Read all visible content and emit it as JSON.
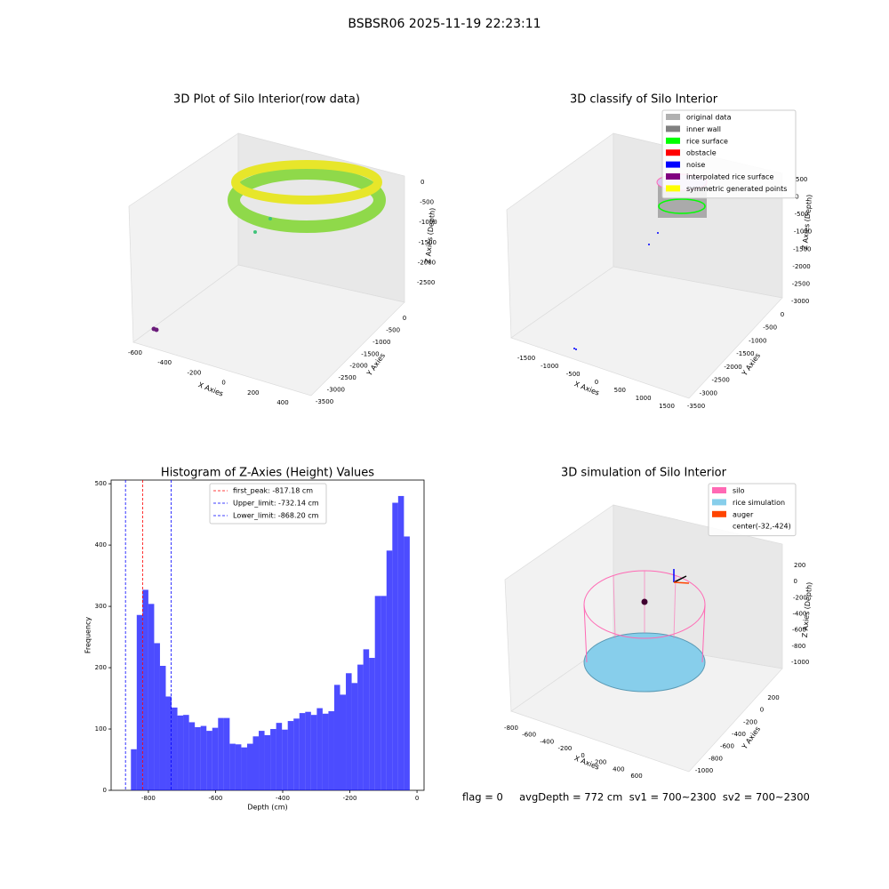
{
  "title": "BSBSR06 2025-11-19 22:23:11",
  "chart_data": [
    {
      "type": "scatter3d",
      "title": "3D Plot of Silo Interior(row data)",
      "x_label": "X Axies",
      "y_label": "Y Axies",
      "z_label": "Z Axies (Depth)",
      "xticks": [
        -600,
        -400,
        -200,
        0,
        200,
        400
      ],
      "yticks": [
        0,
        -500,
        -1000,
        -1500,
        -2000,
        -2500,
        -3000,
        -3500
      ],
      "zticks": [
        0,
        -500,
        -1000,
        -1500,
        -2000,
        -2500
      ]
    },
    {
      "type": "scatter3d",
      "title": "3D classify of Silo Interior",
      "x_label": "X Axies",
      "y_label": "Y Axies",
      "z_label": "Z Axies (Depth)",
      "xticks": [
        -1500,
        -1000,
        -500,
        0,
        500,
        1000,
        1500
      ],
      "yticks": [
        0,
        -500,
        -1000,
        -1500,
        -2000,
        -2500,
        -3000,
        -3500
      ],
      "zticks": [
        500,
        0,
        -500,
        -1000,
        -1500,
        -2000,
        -2500,
        -3000
      ],
      "legend": [
        {
          "name": "original data",
          "color": "#b0b0b0"
        },
        {
          "name": "inner wall",
          "color": "#808080"
        },
        {
          "name": "rice surface",
          "color": "#00ff00"
        },
        {
          "name": "obstacle",
          "color": "#ff0000"
        },
        {
          "name": "noise",
          "color": "#0000ff"
        },
        {
          "name": "interpolated rice surface",
          "color": "#800080"
        },
        {
          "name": "symmetric generated points",
          "color": "#ffff00"
        }
      ]
    },
    {
      "type": "histogram",
      "title": "Histogram of Z-Axies (Height) Values",
      "x_label": "Depth (cm)",
      "y_label": "Frequency",
      "color": "#0000ff",
      "bins": [
        -852,
        -834.7,
        -817.4,
        -800.1,
        -782.8,
        -765.5,
        -748.2,
        -730.9,
        -713.6,
        -696.3,
        -679,
        -661.7,
        -644.4,
        -627.1,
        -609.8,
        -592.5,
        -575.2,
        -557.9,
        -540.6,
        -523.3,
        -506,
        -488.7,
        -471.4,
        -454.1,
        -436.8,
        -419.5,
        -402.2,
        -384.9,
        -367.6,
        -350.3,
        -333,
        -315.7,
        -298.4,
        -281.1,
        -263.8,
        -246.5,
        -229.2,
        -211.9,
        -194.6,
        -177.3,
        -160,
        -142.7,
        -125.4,
        -108.1,
        -90.8,
        -73.5,
        -56.2,
        -38.9,
        -21.6
      ],
      "counts": [
        67,
        286,
        327,
        304,
        240,
        203,
        153,
        135,
        122,
        123,
        111,
        103,
        105,
        97,
        102,
        118,
        118,
        76,
        75,
        70,
        76,
        88,
        97,
        90,
        100,
        110,
        99,
        113,
        117,
        126,
        128,
        123,
        134,
        125,
        129,
        172,
        156,
        191,
        175,
        205,
        230,
        216,
        317,
        317,
        391,
        469,
        480,
        414
      ],
      "xlim": [
        -911,
        21
      ],
      "ylim": [
        0,
        506
      ],
      "xticks": [
        -800,
        -600,
        -400,
        -200,
        0
      ],
      "yticks": [
        0,
        100,
        200,
        300,
        400,
        500
      ],
      "vlines": [
        {
          "value": -817.18,
          "label": "first_peak: -817.18 cm",
          "color": "#ff0000"
        },
        {
          "value": -732.14,
          "label": "Upper_limit: -732.14 cm",
          "color": "#0000ff"
        },
        {
          "value": -868.2,
          "label": "Lower_limit: -868.20 cm",
          "color": "#0000ff"
        }
      ]
    },
    {
      "type": "wireframe3d",
      "title": "3D simulation of Silo Interior",
      "x_label": "X Axies",
      "y_label": "Y Axies",
      "z_label": "Z Axies (Depth)",
      "xticks": [
        -800,
        -600,
        -400,
        -200,
        0,
        200,
        400,
        600
      ],
      "yticks": [
        200,
        0,
        -200,
        -400,
        -600,
        -800,
        -1000
      ],
      "zticks": [
        200,
        0,
        -200,
        -400,
        -600,
        -800,
        -1000
      ],
      "legend": [
        {
          "name": "silo",
          "color": "#ff69b4"
        },
        {
          "name": "rice simulation",
          "color": "#87ceeb"
        },
        {
          "name": "auger",
          "color": "#ff4500"
        },
        {
          "name": "center(-32,-424)",
          "color": "none"
        }
      ]
    }
  ],
  "footer": "flag = 0     avgDepth = 772 cm  sv1 = 700~2300  sv2 = 700~2300"
}
